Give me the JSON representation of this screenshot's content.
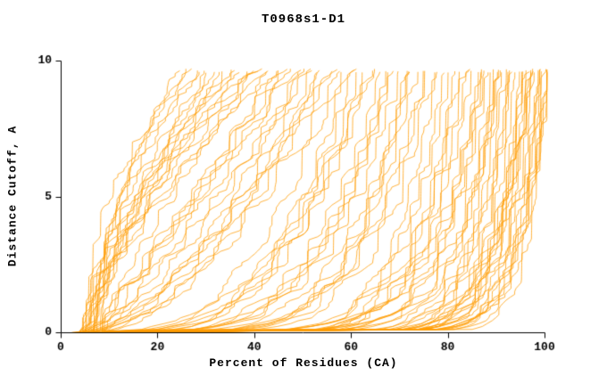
{
  "chart_data": {
    "type": "line",
    "title": "T0968s1-D1",
    "xlabel": "Percent of Residues (CA)",
    "ylabel": "Distance Cutoff, A",
    "xlim": [
      0,
      100
    ],
    "ylim": [
      0,
      10
    ],
    "xticks": [
      0,
      20,
      40,
      60,
      80,
      100
    ],
    "yticks": [
      0,
      5,
      10
    ],
    "grid": false,
    "legend": "none",
    "line_color": "#ff9c00",
    "axis_color": "#000000",
    "background_color": "#ffffff",
    "curve_ensemble": {
      "description": "overlaid per-model GDT curves: percent of CA residues under each distance cutoff",
      "top_cutoff": 9.65,
      "start_percent_min": 4,
      "start_percent_max": 8.5,
      "seed": 42,
      "end_percents": [
        24,
        26,
        27,
        28,
        29,
        30,
        31,
        32,
        33,
        34,
        35,
        36,
        37,
        38,
        39,
        40,
        41,
        42,
        43,
        44,
        45,
        46,
        47,
        48,
        49,
        50,
        51,
        52,
        53,
        54,
        55,
        56,
        57,
        58,
        59,
        60,
        61,
        62,
        63,
        64,
        65,
        66,
        67,
        68,
        69,
        70,
        71,
        72,
        73,
        74,
        75,
        76,
        77,
        78,
        79,
        80,
        81,
        82,
        83,
        84,
        85,
        86,
        87,
        88,
        89,
        90,
        91,
        92,
        93,
        94,
        95,
        96,
        97,
        98,
        99,
        100,
        86,
        88,
        90,
        92,
        94,
        96,
        97,
        98,
        99,
        100,
        95,
        93,
        91,
        89,
        87,
        99,
        98,
        97,
        96,
        100
      ]
    }
  }
}
